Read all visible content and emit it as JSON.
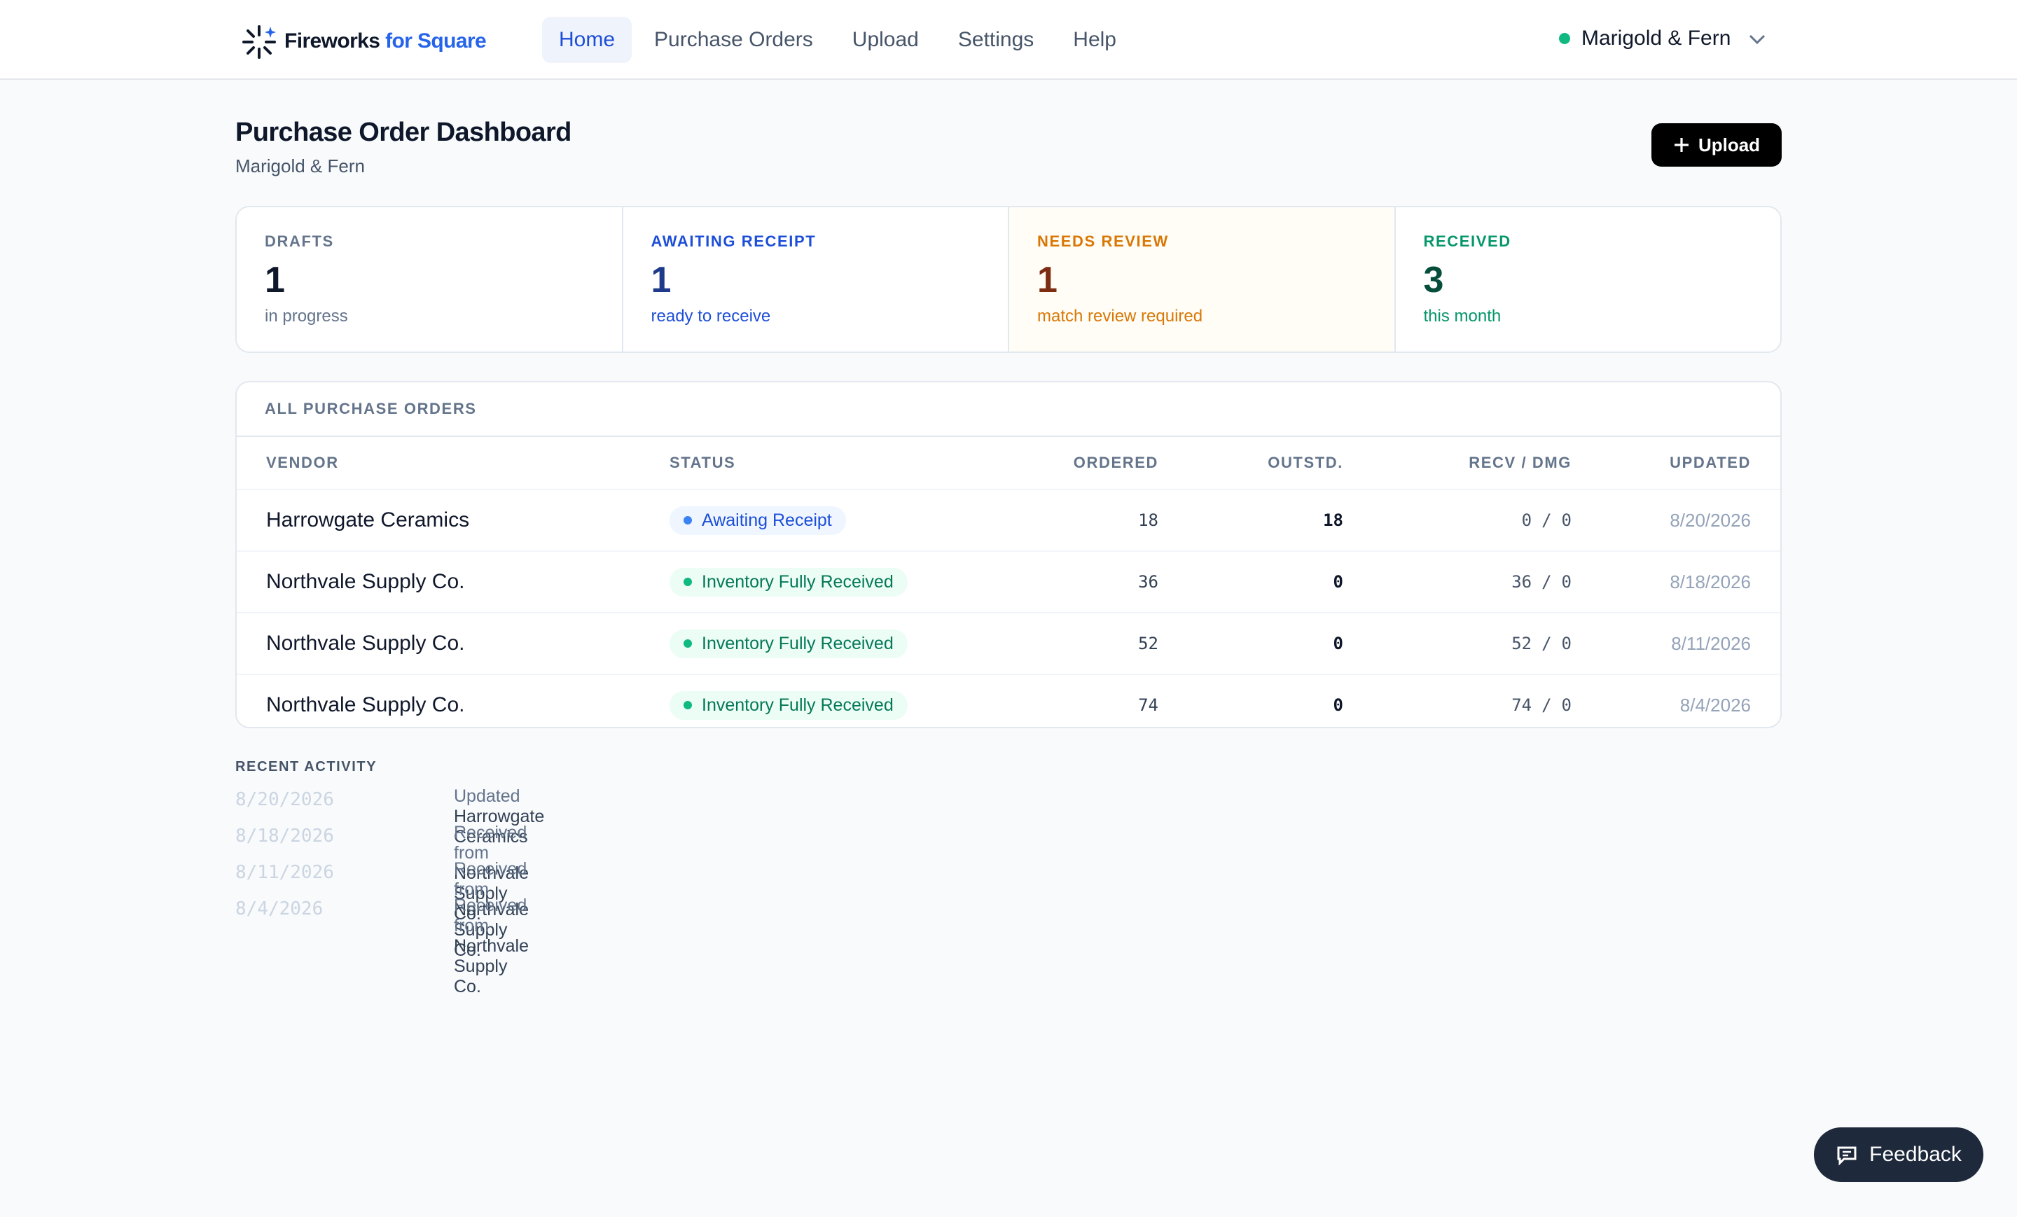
{
  "brand": {
    "name": "Fireworks",
    "suffix": "for Square"
  },
  "nav": [
    "Home",
    "Purchase Orders",
    "Upload",
    "Settings",
    "Help"
  ],
  "account": "Marigold & Fern",
  "header": {
    "title": "Purchase Order Dashboard",
    "subtitle": "Marigold & Fern",
    "button": "Upload"
  },
  "stats": [
    {
      "label": "DRAFTS",
      "value": 1,
      "note": "in progress"
    },
    {
      "label": "AWAITING RECEIPT",
      "value": 1,
      "note": "ready to receive"
    },
    {
      "label": "NEEDS REVIEW",
      "value": 1,
      "note": "match review required"
    },
    {
      "label": "RECEIVED",
      "value": 3,
      "note": "this month"
    }
  ],
  "table": {
    "title": "ALL PURCHASE ORDERS",
    "columns": [
      "VENDOR",
      "STATUS",
      "ORDERED",
      "OUTSTD.",
      "RECV / DMG",
      "UPDATED"
    ],
    "separator": "/",
    "rows": [
      {
        "vendor": "Harrowgate Ceramics",
        "status": "Awaiting Receipt",
        "ordered": 18,
        "outstanding": 18,
        "received": 0,
        "damaged": 0,
        "updated": "8/20/2026"
      },
      {
        "vendor": "Northvale Supply Co.",
        "status": "Inventory Fully Received",
        "ordered": 36,
        "outstanding": 0,
        "received": 36,
        "damaged": 0,
        "updated": "8/18/2026"
      },
      {
        "vendor": "Northvale Supply Co.",
        "status": "Inventory Fully Received",
        "ordered": 52,
        "outstanding": 0,
        "received": 52,
        "damaged": 0,
        "updated": "8/11/2026"
      },
      {
        "vendor": "Northvale Supply Co.",
        "status": "Inventory Fully Received",
        "ordered": 74,
        "outstanding": 0,
        "received": 74,
        "damaged": 0,
        "updated": "8/4/2026"
      }
    ]
  },
  "activity": {
    "title": "RECENT ACTIVITY",
    "items": [
      {
        "date": "8/20/2026",
        "action": "Updated",
        "vendor": "Harrowgate Ceramics"
      },
      {
        "date": "8/18/2026",
        "action": "Received from",
        "vendor": "Northvale Supply Co."
      },
      {
        "date": "8/11/2026",
        "action": "Received from",
        "vendor": "Northvale Supply Co."
      },
      {
        "date": "8/4/2026",
        "action": "Received from",
        "vendor": "Northvale Supply Co."
      }
    ]
  },
  "feedback": "Feedback"
}
